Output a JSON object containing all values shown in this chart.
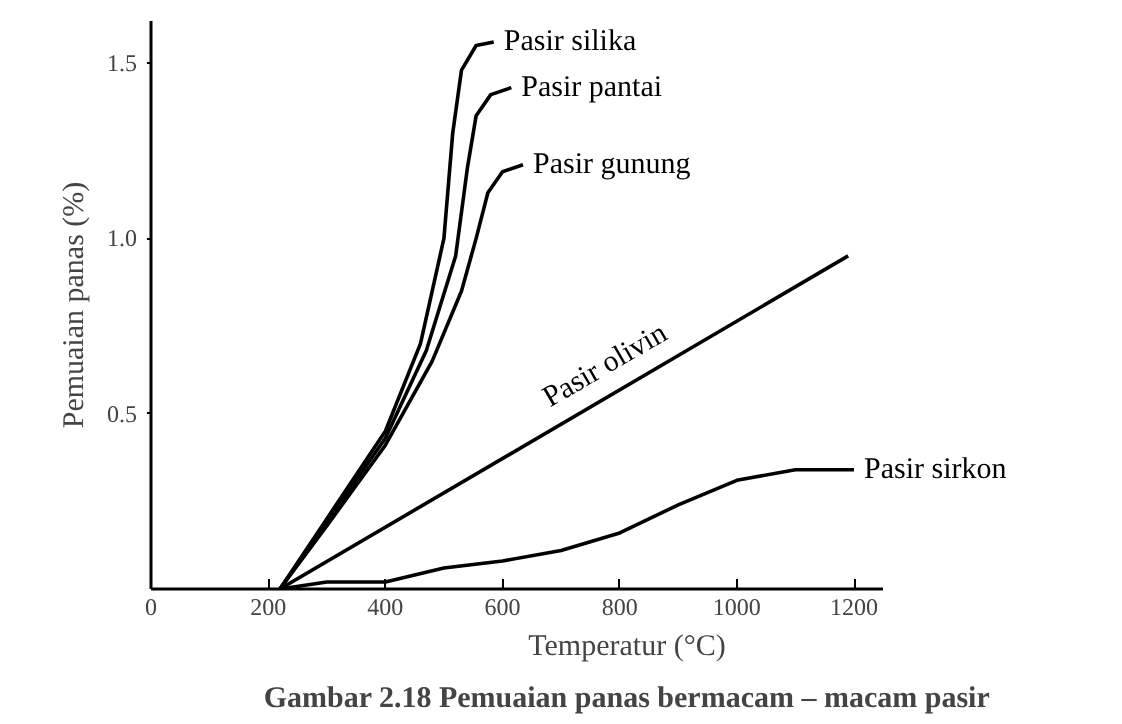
{
  "chart_data": {
    "type": "line",
    "title": "Gambar 2.18 Pemuaian panas bermacam – macam pasir",
    "xlabel": "Temperatur (°C)",
    "ylabel": "Pemuaian panas (%)",
    "xlim": [
      0,
      1250
    ],
    "ylim": [
      0,
      1.62
    ],
    "xticks": [
      0,
      200,
      400,
      600,
      800,
      1000,
      1200
    ],
    "yticks": [
      0.5,
      {
        "value": 1.0,
        "label": "1.0"
      },
      1.5
    ],
    "grid": false,
    "marker": "none",
    "line_style": "solid",
    "series": [
      {
        "name": "Pasir silika",
        "color": "#000000",
        "x": [
          220,
          300,
          400,
          460,
          500,
          515,
          530,
          555,
          585
        ],
        "values": [
          0,
          0.2,
          0.45,
          0.7,
          1.0,
          1.3,
          1.48,
          1.55,
          1.56
        ]
      },
      {
        "name": "Pasir pantai",
        "color": "#000000",
        "x": [
          220,
          300,
          400,
          470,
          520,
          540,
          555,
          580,
          615
        ],
        "values": [
          0,
          0.19,
          0.43,
          0.68,
          0.95,
          1.2,
          1.35,
          1.41,
          1.43
        ]
      },
      {
        "name": "Pasir gunung",
        "color": "#000000",
        "x": [
          220,
          300,
          400,
          480,
          530,
          555,
          575,
          600,
          635
        ],
        "values": [
          0,
          0.18,
          0.41,
          0.65,
          0.85,
          1.0,
          1.13,
          1.19,
          1.21
        ]
      },
      {
        "name": "Pasir olivin",
        "color": "#000000",
        "x": [
          220,
          1190
        ],
        "values": [
          0,
          0.95
        ]
      },
      {
        "name": "Pasir sirkon",
        "color": "#000000",
        "x": [
          220,
          300,
          400,
          500,
          600,
          700,
          800,
          900,
          1000,
          1100,
          1200
        ],
        "values": [
          0,
          0.02,
          0.02,
          0.06,
          0.08,
          0.11,
          0.16,
          0.24,
          0.31,
          0.34,
          0.34
        ]
      }
    ]
  }
}
